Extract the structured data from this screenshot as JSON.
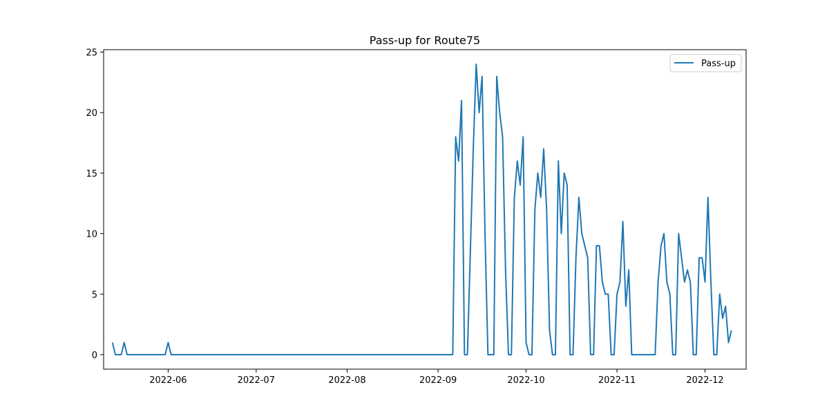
{
  "chart_data": {
    "type": "line",
    "title": "Pass-up for Route75",
    "xlabel": "",
    "ylabel": "",
    "x_ticks": [
      "2022-06",
      "2022-07",
      "2022-08",
      "2022-09",
      "2022-10",
      "2022-11",
      "2022-12"
    ],
    "y_ticks": [
      "0",
      "5",
      "10",
      "15",
      "20",
      "25"
    ],
    "xlim": [
      "2022-05-10",
      "2022-12-15"
    ],
    "ylim": [
      -1.2,
      25.2
    ],
    "grid": false,
    "legend_position": "top-right",
    "series": [
      {
        "name": "Pass-up",
        "color": "#1f77b4",
        "points": [
          [
            "2022-05-13",
            1
          ],
          [
            "2022-05-14",
            0
          ],
          [
            "2022-05-16",
            0
          ],
          [
            "2022-05-17",
            1
          ],
          [
            "2022-05-18",
            0
          ],
          [
            "2022-05-31",
            0
          ],
          [
            "2022-06-01",
            1
          ],
          [
            "2022-06-02",
            0
          ],
          [
            "2022-09-06",
            0
          ],
          [
            "2022-09-07",
            18
          ],
          [
            "2022-09-08",
            16
          ],
          [
            "2022-09-09",
            21
          ],
          [
            "2022-09-10",
            0
          ],
          [
            "2022-09-11",
            0
          ],
          [
            "2022-09-13",
            17
          ],
          [
            "2022-09-14",
            24
          ],
          [
            "2022-09-15",
            20
          ],
          [
            "2022-09-16",
            23
          ],
          [
            "2022-09-17",
            10
          ],
          [
            "2022-09-18",
            0
          ],
          [
            "2022-09-20",
            0
          ],
          [
            "2022-09-21",
            23
          ],
          [
            "2022-09-22",
            20
          ],
          [
            "2022-09-23",
            18
          ],
          [
            "2022-09-24",
            7
          ],
          [
            "2022-09-25",
            0
          ],
          [
            "2022-09-26",
            0
          ],
          [
            "2022-09-27",
            13
          ],
          [
            "2022-09-28",
            16
          ],
          [
            "2022-09-29",
            14
          ],
          [
            "2022-09-30",
            18
          ],
          [
            "2022-10-01",
            1
          ],
          [
            "2022-10-02",
            0
          ],
          [
            "2022-10-03",
            0
          ],
          [
            "2022-10-04",
            12
          ],
          [
            "2022-10-05",
            15
          ],
          [
            "2022-10-06",
            13
          ],
          [
            "2022-10-07",
            17
          ],
          [
            "2022-10-08",
            12
          ],
          [
            "2022-10-09",
            2
          ],
          [
            "2022-10-10",
            0
          ],
          [
            "2022-10-11",
            0
          ],
          [
            "2022-10-12",
            16
          ],
          [
            "2022-10-13",
            10
          ],
          [
            "2022-10-14",
            15
          ],
          [
            "2022-10-15",
            14
          ],
          [
            "2022-10-16",
            0
          ],
          [
            "2022-10-17",
            0
          ],
          [
            "2022-10-18",
            8
          ],
          [
            "2022-10-19",
            13
          ],
          [
            "2022-10-20",
            10
          ],
          [
            "2022-10-22",
            8
          ],
          [
            "2022-10-23",
            0
          ],
          [
            "2022-10-24",
            0
          ],
          [
            "2022-10-25",
            9
          ],
          [
            "2022-10-26",
            9
          ],
          [
            "2022-10-27",
            6
          ],
          [
            "2022-10-28",
            5
          ],
          [
            "2022-10-29",
            5
          ],
          [
            "2022-10-30",
            0
          ],
          [
            "2022-10-31",
            0
          ],
          [
            "2022-11-01",
            5
          ],
          [
            "2022-11-02",
            6
          ],
          [
            "2022-11-03",
            11
          ],
          [
            "2022-11-04",
            4
          ],
          [
            "2022-11-05",
            7
          ],
          [
            "2022-11-06",
            0
          ],
          [
            "2022-11-14",
            0
          ],
          [
            "2022-11-15",
            6
          ],
          [
            "2022-11-16",
            9
          ],
          [
            "2022-11-17",
            10
          ],
          [
            "2022-11-18",
            6
          ],
          [
            "2022-11-19",
            5
          ],
          [
            "2022-11-20",
            0
          ],
          [
            "2022-11-21",
            0
          ],
          [
            "2022-11-22",
            10
          ],
          [
            "2022-11-23",
            8
          ],
          [
            "2022-11-24",
            6
          ],
          [
            "2022-11-25",
            7
          ],
          [
            "2022-11-26",
            6
          ],
          [
            "2022-11-27",
            0
          ],
          [
            "2022-11-28",
            0
          ],
          [
            "2022-11-29",
            8
          ],
          [
            "2022-11-30",
            8
          ],
          [
            "2022-12-01",
            6
          ],
          [
            "2022-12-02",
            13
          ],
          [
            "2022-12-03",
            6
          ],
          [
            "2022-12-04",
            0
          ],
          [
            "2022-12-05",
            0
          ],
          [
            "2022-12-06",
            5
          ],
          [
            "2022-12-07",
            3
          ],
          [
            "2022-12-08",
            4
          ],
          [
            "2022-12-09",
            1
          ],
          [
            "2022-12-10",
            2
          ]
        ]
      }
    ]
  }
}
